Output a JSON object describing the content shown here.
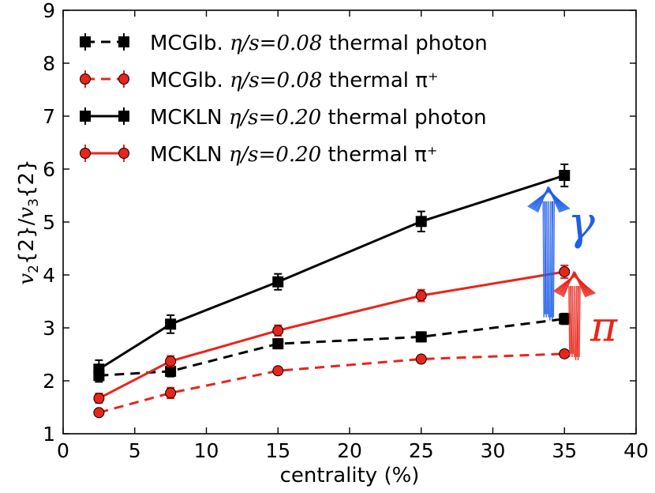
{
  "chart_data": {
    "type": "line",
    "title": "",
    "xlabel": "centrality (%)",
    "ylabel": "v2{2}/v3{2}",
    "xlim": [
      0,
      40
    ],
    "ylim": [
      1,
      9
    ],
    "xticks": [
      0,
      5,
      10,
      15,
      20,
      25,
      30,
      35,
      40
    ],
    "yticks": [
      1,
      2,
      3,
      4,
      5,
      6,
      7,
      8,
      9
    ],
    "grid": false,
    "legend_position": "top-left",
    "series": [
      {
        "name": "MCGlb. η/s=0.08 thermal photon",
        "label_prefix": "MCGlb.",
        "label_math": "η/s=0.08",
        "label_suffix": "thermal photon",
        "color": "#000000",
        "marker": "square",
        "linestyle": "dashed",
        "x": [
          2.5,
          7.5,
          15,
          25,
          35
        ],
        "y": [
          2.1,
          2.18,
          2.7,
          2.83,
          3.17
        ],
        "yerr": [
          0.12,
          0.1,
          0.09,
          0.09,
          0.1
        ]
      },
      {
        "name": "MCGlb. η/s=0.08 thermal π+",
        "label_prefix": "MCGlb.",
        "label_math": "η/s=0.08",
        "label_suffix": "thermal π⁺",
        "color": "#e8251b",
        "marker": "circle",
        "linestyle": "dashed",
        "x": [
          2.5,
          7.5,
          15,
          25,
          35
        ],
        "y": [
          1.4,
          1.77,
          2.19,
          2.41,
          2.51
        ],
        "yerr": [
          0.05,
          0.1,
          0.05,
          0.05,
          0.06
        ]
      },
      {
        "name": "MCKLN η/s=0.20 thermal photon",
        "label_prefix": "MCKLN",
        "label_math": "η/s=0.20",
        "label_suffix": "thermal photon",
        "color": "#000000",
        "marker": "square",
        "linestyle": "solid",
        "x": [
          2.5,
          7.5,
          15,
          25,
          35
        ],
        "y": [
          2.22,
          3.07,
          3.87,
          5.01,
          5.88
        ],
        "yerr": [
          0.17,
          0.17,
          0.15,
          0.19,
          0.21
        ]
      },
      {
        "name": "MCKLN η/s=0.20 thermal π+",
        "label_prefix": "MCKLN",
        "label_math": "η/s=0.20",
        "label_suffix": "thermal π⁺",
        "color": "#e8251b",
        "marker": "circle",
        "linestyle": "solid",
        "x": [
          2.5,
          7.5,
          15,
          25,
          35
        ],
        "y": [
          1.67,
          2.37,
          2.95,
          3.61,
          4.06
        ],
        "yerr": [
          0.09,
          0.1,
          0.1,
          0.11,
          0.12
        ]
      }
    ],
    "annotations": [
      {
        "label": "γ",
        "color": "#1f5fe8",
        "x_data": 33.9,
        "y_from": 3.2,
        "y_to": 5.6
      },
      {
        "label": "π",
        "color": "#e8251b",
        "x_data": 35.7,
        "y_from": 2.45,
        "y_to": 4.0
      }
    ]
  }
}
